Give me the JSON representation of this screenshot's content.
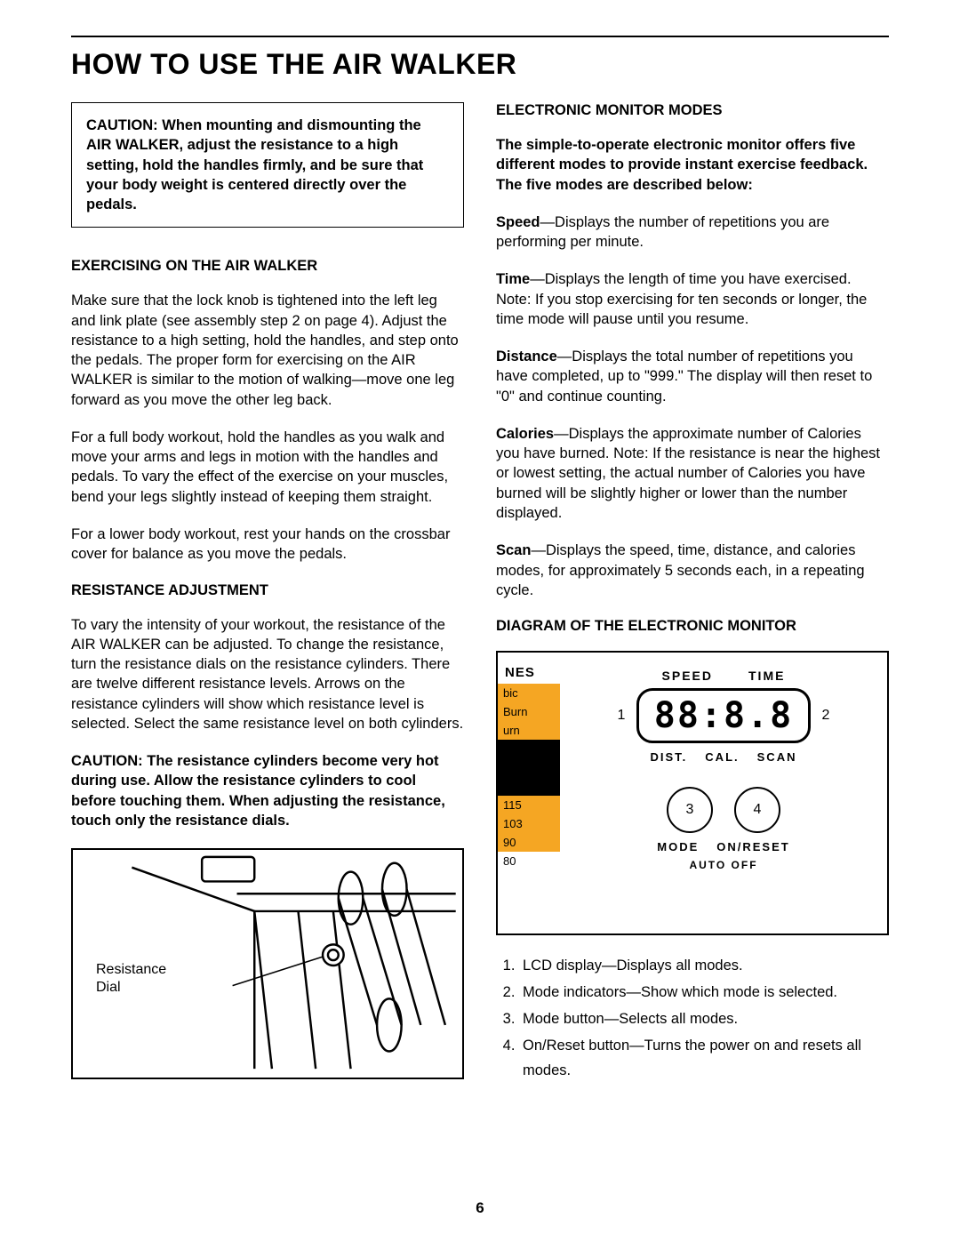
{
  "page_number": "6",
  "title": "HOW TO USE THE AIR WALKER",
  "caution_box": "CAUTION: When mounting and dismounting the AIR WALKER, adjust the resistance to a high setting, hold the handles firmly, and be sure that your body weight is centered directly over the pedals.",
  "left": {
    "sec1_head": "EXERCISING ON THE AIR WALKER",
    "sec1_p1": "Make sure that the lock knob is tightened into the left leg and link plate (see assembly step 2 on page 4). Adjust the resistance to a high setting, hold the handles, and step onto the pedals. The proper form for exercising on the AIR WALKER is similar to the motion of walking—move one leg forward as you move the other leg back.",
    "sec1_p2": "For a full body workout, hold the handles as you walk and move your arms and legs in motion with the handles and pedals. To vary the effect of the exercise on your muscles, bend your legs slightly instead of keeping them straight.",
    "sec1_p3": "For a lower body workout, rest your hands on the crossbar cover for balance as you move the pedals.",
    "sec2_head": "RESISTANCE ADJUSTMENT",
    "sec2_p1": "To vary the intensity of your workout, the resistance of the AIR WALKER can be adjusted. To change the resistance, turn the resistance dials on the resistance cylinders. There are twelve different resistance levels. Arrows on the resistance cylinders will show which resistance level is selected. Select the same resistance level on both cylinders.",
    "sec2_caution": "CAUTION: The resistance cylinders become very hot during use. Allow the resistance cylinders to cool before touching them. When adjusting the resistance, touch only the resistance dials.",
    "fig_label_l1": "Resistance",
    "fig_label_l2": "Dial"
  },
  "right": {
    "sec1_head": "ELECTRONIC MONITOR MODES",
    "sec1_intro": "The simple-to-operate electronic monitor offers five different modes to provide instant exercise feedback. The five modes are described below:",
    "modes": [
      {
        "label": "Speed",
        "text": "—Displays the number of repetitions you are performing per minute."
      },
      {
        "label": "Time",
        "text": "—Displays the length of time you have exercised. Note: If you stop exercising for ten seconds or longer, the time mode will pause until you resume."
      },
      {
        "label": "Distance",
        "text": "—Displays the total number of repetitions you have completed, up to \"999.\" The display will then reset to \"0\" and continue counting."
      },
      {
        "label": "Calories",
        "text": "—Displays the approximate number of Calories you have burned. Note: If the resistance is near the highest or lowest setting, the actual number of Calories you have burned will be slightly higher or lower than the number displayed."
      },
      {
        "label": "Scan",
        "text": "—Displays the speed, time, distance, and calories modes, for approximately 5 seconds each, in a repeating cycle."
      }
    ],
    "sec2_head": "DIAGRAM OF THE ELECTRONIC MONITOR",
    "legend": [
      "LCD display—Displays all modes.",
      "Mode indicators—Show which mode is selected.",
      "Mode button—Selects all modes.",
      "On/Reset button—Turns the power on and resets all modes."
    ]
  },
  "monitor": {
    "left_title": "NES",
    "left_rows": [
      {
        "text": "bic",
        "cls": "orange"
      },
      {
        "text": "Burn",
        "cls": "orange"
      },
      {
        "text": "urn",
        "cls": "orange"
      },
      {
        "text": "",
        "cls": "black"
      },
      {
        "text": "",
        "cls": "black"
      },
      {
        "text": "",
        "cls": "black"
      },
      {
        "text": "115",
        "cls": "orange"
      },
      {
        "text": "103",
        "cls": "orange"
      },
      {
        "text": "90",
        "cls": "orange"
      },
      {
        "text": "80",
        "cls": ""
      }
    ],
    "top_left": "SPEED",
    "top_right": "TIME",
    "callout_1": "1",
    "callout_2": "2",
    "lcd_text": "88:8.8",
    "mid_dist": "DIST.",
    "mid_cal": "CAL.",
    "mid_scan": "SCAN",
    "btn3": "3",
    "btn4": "4",
    "label_mode": "MODE",
    "label_onreset": "ON/RESET",
    "auto_off": "AUTO OFF"
  }
}
